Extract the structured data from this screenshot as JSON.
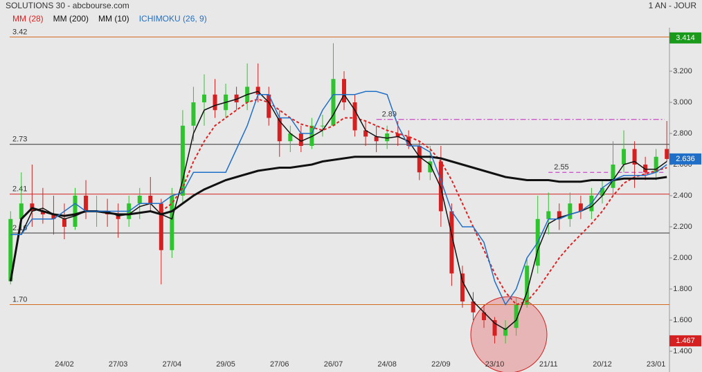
{
  "chart_data": {
    "type": "candlestick",
    "title": "SOLUTIONS 30 - abcbourse.com",
    "period": "1 AN - JOUR",
    "categories": [
      null,
      null,
      null,
      null,
      null,
      "24/02",
      null,
      null,
      null,
      null,
      "27/03",
      null,
      null,
      null,
      null,
      "27/04",
      null,
      null,
      null,
      null,
      "29/05",
      null,
      null,
      null,
      null,
      "27/06",
      null,
      null,
      null,
      null,
      "26/07",
      null,
      null,
      null,
      null,
      "24/08",
      null,
      null,
      null,
      null,
      "22/09",
      null,
      null,
      null,
      null,
      "23/10",
      null,
      null,
      null,
      null,
      "21/11",
      null,
      null,
      null,
      null,
      "20/12",
      null,
      null,
      null,
      null,
      "23/01",
      null
    ],
    "open": [
      1.85,
      2.25,
      2.35,
      2.3,
      2.28,
      2.25,
      2.2,
      2.4,
      2.3,
      2.3,
      2.28,
      2.25,
      2.35,
      2.4,
      2.35,
      2.05,
      2.4,
      2.85,
      3.0,
      3.05,
      2.95,
      3.05,
      3.0,
      3.1,
      3.05,
      2.9,
      2.75,
      2.8,
      2.72,
      2.85,
      2.85,
      3.15,
      3.0,
      2.82,
      2.78,
      2.75,
      2.8,
      2.78,
      2.72,
      2.55,
      2.62,
      2.3,
      1.9,
      1.72,
      1.65,
      1.6,
      1.5,
      1.55,
      1.7,
      1.95,
      2.25,
      2.3,
      2.25,
      2.35,
      2.3,
      2.4,
      2.45,
      2.6,
      2.7,
      2.6,
      2.55,
      2.7
    ],
    "high": [
      2.3,
      2.55,
      2.6,
      2.45,
      2.4,
      2.35,
      2.45,
      2.5,
      2.4,
      2.38,
      2.35,
      2.4,
      2.45,
      2.52,
      2.38,
      2.45,
      2.95,
      3.1,
      3.18,
      3.15,
      3.12,
      3.1,
      3.25,
      3.25,
      3.1,
      2.95,
      2.85,
      2.85,
      2.9,
      2.92,
      3.38,
      3.2,
      3.05,
      2.88,
      2.85,
      2.85,
      2.88,
      2.82,
      2.75,
      2.72,
      2.72,
      2.35,
      1.95,
      1.78,
      1.7,
      1.62,
      1.6,
      1.75,
      2.0,
      2.4,
      2.42,
      2.35,
      2.42,
      2.4,
      2.45,
      2.5,
      2.75,
      2.82,
      2.75,
      2.65,
      2.7,
      2.88
    ],
    "low": [
      1.83,
      2.2,
      2.2,
      2.22,
      2.15,
      2.12,
      2.18,
      2.25,
      2.2,
      2.2,
      2.13,
      2.2,
      2.25,
      2.3,
      1.83,
      2.0,
      2.35,
      2.75,
      2.85,
      2.9,
      2.9,
      2.95,
      2.95,
      3.0,
      2.85,
      2.65,
      2.68,
      2.68,
      2.7,
      2.78,
      2.85,
      2.95,
      2.78,
      2.72,
      2.68,
      2.7,
      2.72,
      2.7,
      2.5,
      2.5,
      2.2,
      1.82,
      1.68,
      1.6,
      1.55,
      1.45,
      1.45,
      1.5,
      1.68,
      1.9,
      2.15,
      2.18,
      2.2,
      2.25,
      2.25,
      2.35,
      2.4,
      2.55,
      2.45,
      2.5,
      2.5,
      2.62
    ],
    "close": [
      2.25,
      2.35,
      2.3,
      2.28,
      2.25,
      2.2,
      2.4,
      2.3,
      2.3,
      2.28,
      2.25,
      2.35,
      2.4,
      2.35,
      2.05,
      2.4,
      2.85,
      3.0,
      3.05,
      2.95,
      3.05,
      3.0,
      3.1,
      3.05,
      2.9,
      2.75,
      2.8,
      2.72,
      2.85,
      2.85,
      3.15,
      3.0,
      2.82,
      2.78,
      2.75,
      2.8,
      2.78,
      2.72,
      2.55,
      2.62,
      2.3,
      1.9,
      1.72,
      1.65,
      1.6,
      1.5,
      1.55,
      1.7,
      1.95,
      2.25,
      2.3,
      2.25,
      2.35,
      2.3,
      2.4,
      2.45,
      2.6,
      2.7,
      2.6,
      2.55,
      2.65,
      2.636
    ],
    "up_color": "#2ec42e",
    "down_color": "#d42020",
    "series": [
      {
        "name": "MM (28)",
        "color": "#e02020",
        "dashed": true,
        "width": 2,
        "values": [
          null,
          null,
          null,
          null,
          null,
          null,
          null,
          null,
          null,
          null,
          null,
          null,
          null,
          null,
          2.3,
          2.35,
          2.45,
          2.62,
          2.75,
          2.85,
          2.9,
          2.95,
          3.0,
          3.02,
          3.0,
          2.95,
          2.9,
          2.86,
          2.84,
          2.82,
          2.85,
          2.9,
          2.9,
          2.88,
          2.85,
          2.82,
          2.8,
          2.78,
          2.75,
          2.7,
          2.62,
          2.5,
          2.35,
          2.2,
          2.05,
          1.9,
          1.78,
          1.7,
          1.72,
          1.8,
          1.9,
          2.0,
          2.08,
          2.15,
          2.22,
          2.3,
          2.4,
          2.48,
          2.52,
          2.54,
          2.56,
          2.58
        ]
      },
      {
        "name": "MM (200)",
        "color": "#111111",
        "dashed": false,
        "width": 3,
        "values": [
          1.85,
          2.25,
          2.32,
          2.3,
          2.28,
          2.27,
          2.28,
          2.3,
          2.3,
          2.29,
          2.28,
          2.28,
          2.29,
          2.3,
          2.28,
          2.3,
          2.35,
          2.4,
          2.44,
          2.47,
          2.5,
          2.52,
          2.54,
          2.56,
          2.57,
          2.58,
          2.58,
          2.59,
          2.6,
          2.62,
          2.63,
          2.64,
          2.65,
          2.65,
          2.65,
          2.65,
          2.65,
          2.65,
          2.65,
          2.65,
          2.64,
          2.62,
          2.6,
          2.58,
          2.56,
          2.54,
          2.52,
          2.51,
          2.5,
          2.5,
          2.5,
          2.49,
          2.49,
          2.49,
          2.5,
          2.5,
          2.5,
          2.51,
          2.51,
          2.51,
          2.51,
          2.52
        ]
      },
      {
        "name": "MM (10)",
        "color": "#111111",
        "dashed": false,
        "width": 1.5,
        "values": [
          null,
          2.15,
          2.3,
          2.32,
          2.28,
          2.25,
          2.27,
          2.3,
          2.3,
          2.3,
          2.27,
          2.28,
          2.33,
          2.35,
          2.28,
          2.25,
          2.5,
          2.8,
          2.95,
          2.98,
          3.0,
          3.02,
          3.05,
          3.07,
          3.0,
          2.88,
          2.8,
          2.75,
          2.78,
          2.82,
          2.92,
          3.05,
          2.95,
          2.82,
          2.78,
          2.77,
          2.78,
          2.75,
          2.65,
          2.6,
          2.45,
          2.15,
          1.85,
          1.72,
          1.65,
          1.58,
          1.54,
          1.6,
          1.78,
          2.05,
          2.22,
          2.26,
          2.28,
          2.3,
          2.33,
          2.4,
          2.5,
          2.6,
          2.62,
          2.57,
          2.57,
          2.62
        ]
      },
      {
        "name": "ICHIMOKU (26, 9)",
        "color": "#1f6fc8",
        "dashed": false,
        "width": 1.5,
        "values": [
          2.15,
          2.15,
          2.25,
          2.25,
          2.25,
          2.3,
          2.35,
          2.3,
          2.3,
          2.3,
          2.3,
          2.3,
          2.35,
          2.35,
          2.35,
          2.4,
          2.42,
          2.55,
          2.55,
          2.55,
          2.55,
          2.7,
          2.85,
          3.05,
          3.05,
          2.9,
          2.9,
          2.8,
          2.8,
          2.95,
          3.05,
          3.05,
          3.05,
          3.07,
          3.07,
          3.05,
          2.85,
          2.72,
          2.72,
          2.68,
          2.5,
          2.3,
          2.2,
          2.2,
          2.1,
          1.85,
          1.7,
          1.8,
          2.0,
          2.1,
          2.25,
          2.25,
          2.28,
          2.3,
          2.35,
          2.45,
          2.5,
          2.53,
          2.53,
          2.53,
          2.55,
          2.6
        ]
      }
    ],
    "levels": [
      {
        "value": 3.42,
        "label": "3.42",
        "color": "#d2691e",
        "style": "solid",
        "from": 0
      },
      {
        "value": 2.73,
        "label": "2.73",
        "color": "#333333",
        "style": "solid",
        "from": 0
      },
      {
        "value": 2.41,
        "label": "2.41",
        "color": "#d42020",
        "style": "solid",
        "from": 0
      },
      {
        "value": 2.16,
        "label": "2.16",
        "color": "#333333",
        "style": "solid",
        "from": 0
      },
      {
        "value": 1.7,
        "label": "1.70",
        "color": "#d2691e",
        "style": "solid",
        "from": 0
      },
      {
        "value": 2.89,
        "label": "2.89",
        "color": "#c020c0",
        "style": "dashdot",
        "from": 34
      },
      {
        "value": 2.55,
        "label": "2.55",
        "color": "#c020c0",
        "style": "dashed",
        "from": 50
      }
    ],
    "price_tags": [
      {
        "value": 3.414,
        "color": "#1a9a1a"
      },
      {
        "value": 2.636,
        "color": "#1f6fc8"
      },
      {
        "value": 1.467,
        "color": "#d42020"
      }
    ],
    "ylim": [
      1.36,
      3.48
    ],
    "yticks": [
      {
        "value": 1.4,
        "label": "1.400"
      },
      {
        "value": 1.6,
        "label": "1.600"
      },
      {
        "value": 1.8,
        "label": "1.800"
      },
      {
        "value": 2.0,
        "label": "2.000"
      },
      {
        "value": 2.2,
        "label": "2.200"
      },
      {
        "value": 2.4,
        "label": "2.400"
      },
      {
        "value": 2.6,
        "label": "2.600"
      },
      {
        "value": 2.8,
        "label": "2.800"
      },
      {
        "value": 3.0,
        "label": "3.000"
      },
      {
        "value": 3.2,
        "label": "3.200"
      }
    ]
  }
}
